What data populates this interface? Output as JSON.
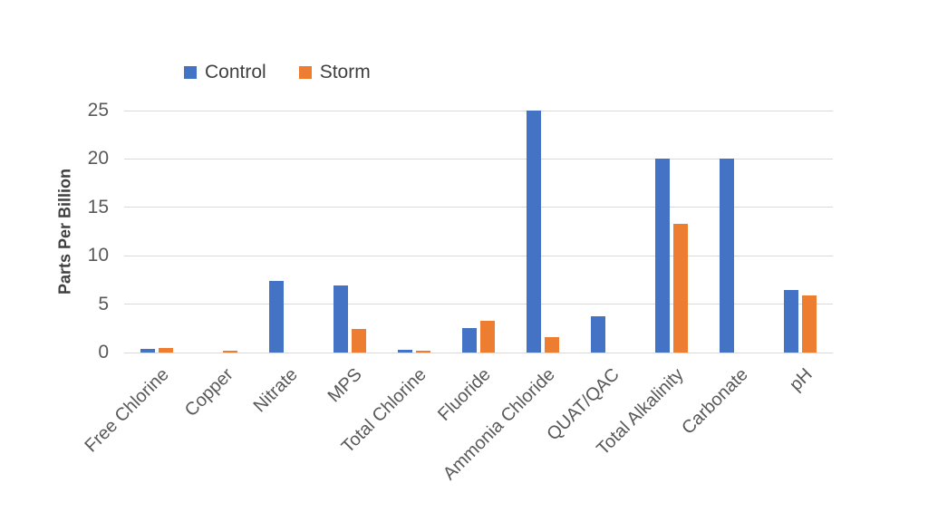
{
  "chart_data": {
    "type": "bar",
    "title": "",
    "xlabel": "",
    "ylabel": "Parts Per Billion",
    "categories": [
      "Free Chlorine",
      "Copper",
      "Nitrate",
      "MPS",
      "Total Chlorine",
      "Fluoride",
      "Ammonia Chloride",
      "QUAT/QAC",
      "Total Alkalinity",
      "Carbonate",
      "pH"
    ],
    "series": [
      {
        "name": "Control",
        "color": "#4472C4",
        "values": [
          0.4,
          0,
          7.4,
          6.9,
          0.25,
          2.5,
          25,
          3.7,
          20,
          20,
          6.5
        ]
      },
      {
        "name": "Storm",
        "color": "#ED7D31",
        "values": [
          0.45,
          0.2,
          0,
          2.45,
          0.2,
          3.3,
          1.6,
          0,
          13.3,
          0,
          5.9
        ]
      }
    ],
    "yticks": [
      0,
      5,
      10,
      15,
      20,
      25
    ],
    "ylim": [
      0,
      25
    ],
    "grid": true,
    "legend_position": "top",
    "colors": {
      "gridline": "#D9D9D9",
      "axis_text": "#595959",
      "legend_text": "#404040",
      "background": "#FFFFFF"
    }
  }
}
